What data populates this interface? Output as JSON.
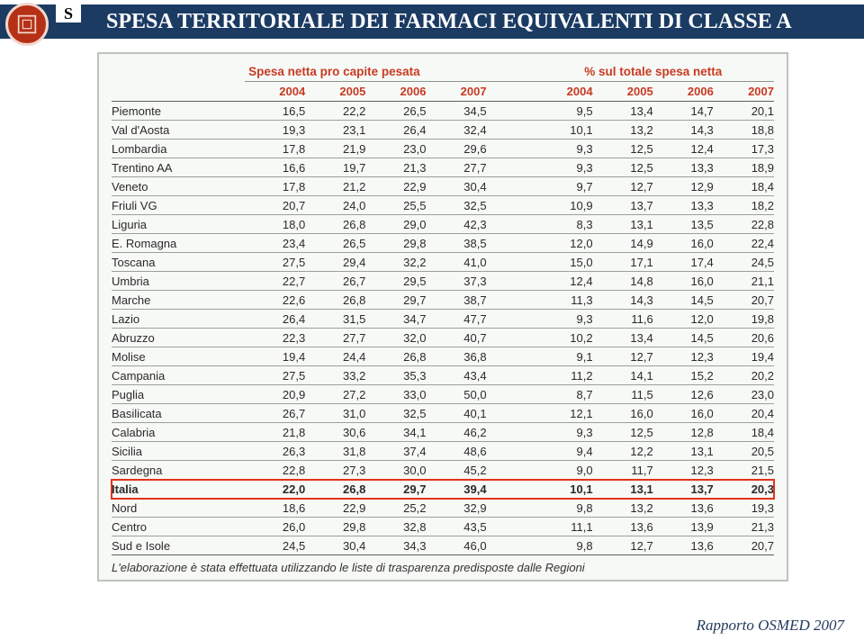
{
  "header": {
    "title": "SPESA TERRITORIALE DEI FARMACI EQUIVALENTI DI CLASSE A",
    "s_badge": "S"
  },
  "table": {
    "group_headers": {
      "left": "Spesa netta pro capite pesata",
      "right": "% sul totale spesa netta"
    },
    "years": [
      "2004",
      "2005",
      "2006",
      "2007",
      "2004",
      "2005",
      "2006",
      "2007"
    ],
    "rows": [
      {
        "region": "Piemonte",
        "v": [
          "16,5",
          "22,2",
          "26,5",
          "34,5",
          "9,5",
          "13,4",
          "14,7",
          "20,1"
        ]
      },
      {
        "region": "Val d'Aosta",
        "v": [
          "19,3",
          "23,1",
          "26,4",
          "32,4",
          "10,1",
          "13,2",
          "14,3",
          "18,8"
        ]
      },
      {
        "region": "Lombardia",
        "v": [
          "17,8",
          "21,9",
          "23,0",
          "29,6",
          "9,3",
          "12,5",
          "12,4",
          "17,3"
        ]
      },
      {
        "region": "Trentino AA",
        "v": [
          "16,6",
          "19,7",
          "21,3",
          "27,7",
          "9,3",
          "12,5",
          "13,3",
          "18,9"
        ]
      },
      {
        "region": "Veneto",
        "v": [
          "17,8",
          "21,2",
          "22,9",
          "30,4",
          "9,7",
          "12,7",
          "12,9",
          "18,4"
        ]
      },
      {
        "region": "Friuli VG",
        "v": [
          "20,7",
          "24,0",
          "25,5",
          "32,5",
          "10,9",
          "13,7",
          "13,3",
          "18,2"
        ]
      },
      {
        "region": "Liguria",
        "v": [
          "18,0",
          "26,8",
          "29,0",
          "42,3",
          "8,3",
          "13,1",
          "13,5",
          "22,8"
        ]
      },
      {
        "region": "E. Romagna",
        "v": [
          "23,4",
          "26,5",
          "29,8",
          "38,5",
          "12,0",
          "14,9",
          "16,0",
          "22,4"
        ]
      },
      {
        "region": "Toscana",
        "v": [
          "27,5",
          "29,4",
          "32,2",
          "41,0",
          "15,0",
          "17,1",
          "17,4",
          "24,5"
        ]
      },
      {
        "region": "Umbria",
        "v": [
          "22,7",
          "26,7",
          "29,5",
          "37,3",
          "12,4",
          "14,8",
          "16,0",
          "21,1"
        ]
      },
      {
        "region": "Marche",
        "v": [
          "22,6",
          "26,8",
          "29,7",
          "38,7",
          "11,3",
          "14,3",
          "14,5",
          "20,7"
        ]
      },
      {
        "region": "Lazio",
        "v": [
          "26,4",
          "31,5",
          "34,7",
          "47,7",
          "9,3",
          "11,6",
          "12,0",
          "19,8"
        ]
      },
      {
        "region": "Abruzzo",
        "v": [
          "22,3",
          "27,7",
          "32,0",
          "40,7",
          "10,2",
          "13,4",
          "14,5",
          "20,6"
        ]
      },
      {
        "region": "Molise",
        "v": [
          "19,4",
          "24,4",
          "26,8",
          "36,8",
          "9,1",
          "12,7",
          "12,3",
          "19,4"
        ]
      },
      {
        "region": "Campania",
        "v": [
          "27,5",
          "33,2",
          "35,3",
          "43,4",
          "11,2",
          "14,1",
          "15,2",
          "20,2"
        ]
      },
      {
        "region": "Puglia",
        "v": [
          "20,9",
          "27,2",
          "33,0",
          "50,0",
          "8,7",
          "11,5",
          "12,6",
          "23,0"
        ]
      },
      {
        "region": "Basilicata",
        "v": [
          "26,7",
          "31,0",
          "32,5",
          "40,1",
          "12,1",
          "16,0",
          "16,0",
          "20,4"
        ]
      },
      {
        "region": "Calabria",
        "v": [
          "21,8",
          "30,6",
          "34,1",
          "46,2",
          "9,3",
          "12,5",
          "12,8",
          "18,4"
        ]
      },
      {
        "region": "Sicilia",
        "v": [
          "26,3",
          "31,8",
          "37,4",
          "48,6",
          "9,4",
          "12,2",
          "13,1",
          "20,5"
        ]
      },
      {
        "region": "Sardegna",
        "v": [
          "22,8",
          "27,3",
          "30,0",
          "45,2",
          "9,0",
          "11,7",
          "12,3",
          "21,5"
        ]
      },
      {
        "region": "Italia",
        "v": [
          "22,0",
          "26,8",
          "29,7",
          "39,4",
          "10,1",
          "13,1",
          "13,7",
          "20,3"
        ],
        "bold": true,
        "boxed": true
      },
      {
        "region": "Nord",
        "v": [
          "18,6",
          "22,9",
          "25,2",
          "32,9",
          "9,8",
          "13,2",
          "13,6",
          "19,3"
        ]
      },
      {
        "region": "Centro",
        "v": [
          "26,0",
          "29,8",
          "32,8",
          "43,5",
          "11,1",
          "13,6",
          "13,9",
          "21,3"
        ]
      },
      {
        "region": "Sud e Isole",
        "v": [
          "24,5",
          "30,4",
          "34,3",
          "46,0",
          "9,8",
          "12,7",
          "13,6",
          "20,7"
        ]
      }
    ],
    "footnote": "L'elaborazione è stata effettuata utilizzando le liste di trasparenza predisposte dalle Regioni"
  },
  "source": "Rapporto OSMED 2007"
}
